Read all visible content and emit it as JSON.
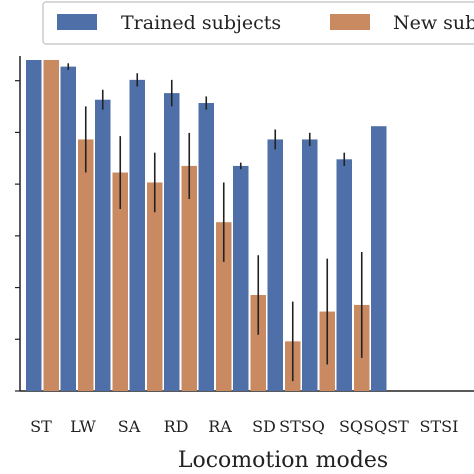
{
  "chart_data": {
    "type": "bar",
    "xlabel": "Locomotion modes",
    "categories": [
      "ST",
      "LW",
      "SA",
      "RD",
      "RA",
      "SD",
      "STSQ",
      "SQ",
      "SQST",
      "STSI",
      ""
    ],
    "ylim": [
      0,
      1
    ],
    "series": [
      {
        "name": "Trained subjects",
        "color": "#4e6fa8",
        "values": [
          1.0,
          0.98,
          0.88,
          0.94,
          0.9,
          0.87,
          0.68,
          0.76,
          0.76,
          0.7,
          0.8
        ],
        "errors": [
          0.0,
          0.01,
          0.03,
          0.02,
          0.04,
          0.02,
          0.01,
          0.03,
          0.02,
          0.02,
          null
        ]
      },
      {
        "name": "New subjects",
        "color": "#c98a62",
        "values": [
          1.0,
          0.76,
          0.66,
          0.63,
          0.68,
          0.51,
          0.29,
          0.15,
          0.24,
          0.26,
          null
        ],
        "errors": [
          0.0,
          0.1,
          0.11,
          0.09,
          0.1,
          0.12,
          0.12,
          0.12,
          0.16,
          0.16,
          null
        ]
      }
    ],
    "legend": {
      "position": "top",
      "entries": [
        "Trained subjects",
        "New subje"
      ]
    },
    "grid": false
  }
}
